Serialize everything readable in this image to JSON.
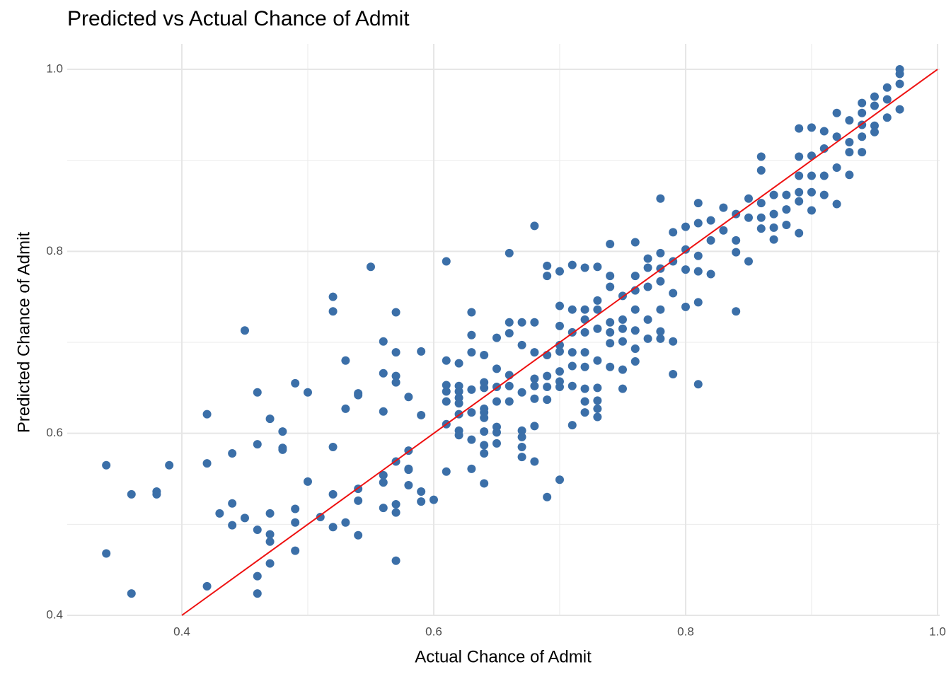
{
  "chart_data": {
    "type": "scatter",
    "title": "Predicted vs Actual Chance of Admit",
    "x_label": "Actual Chance of Admit",
    "y_label": "Predicted Chance of Admit",
    "color": "#3b6fa8",
    "x": [
      0.34,
      0.34,
      0.36,
      0.36,
      0.38,
      0.38,
      0.39,
      0.42,
      0.42,
      0.42,
      0.43,
      0.44,
      0.44,
      0.44,
      0.45,
      0.45,
      0.46,
      0.46,
      0.46,
      0.46,
      0.46,
      0.47,
      0.47,
      0.47,
      0.47,
      0.47,
      0.48,
      0.48,
      0.48,
      0.49,
      0.49,
      0.49,
      0.49,
      0.5,
      0.5,
      0.51,
      0.52,
      0.52,
      0.52,
      0.52,
      0.52,
      0.53,
      0.53,
      0.53,
      0.54,
      0.54,
      0.54,
      0.54,
      0.54,
      0.55,
      0.56,
      0.56,
      0.56,
      0.56,
      0.56,
      0.56,
      0.57,
      0.57,
      0.57,
      0.57,
      0.57,
      0.57,
      0.57,
      0.57,
      0.58,
      0.58,
      0.58,
      0.58,
      0.58,
      0.59,
      0.59,
      0.59,
      0.59,
      0.6,
      0.61,
      0.61,
      0.61,
      0.61,
      0.61,
      0.61,
      0.61,
      0.62,
      0.62,
      0.62,
      0.62,
      0.62,
      0.62,
      0.62,
      0.62,
      0.63,
      0.63,
      0.63,
      0.63,
      0.63,
      0.63,
      0.63,
      0.64,
      0.64,
      0.64,
      0.64,
      0.64,
      0.64,
      0.64,
      0.64,
      0.64,
      0.64,
      0.65,
      0.65,
      0.65,
      0.65,
      0.65,
      0.65,
      0.65,
      0.66,
      0.66,
      0.66,
      0.66,
      0.66,
      0.66,
      0.67,
      0.67,
      0.67,
      0.67,
      0.67,
      0.67,
      0.67,
      0.68,
      0.68,
      0.68,
      0.68,
      0.68,
      0.68,
      0.68,
      0.68,
      0.69,
      0.69,
      0.69,
      0.69,
      0.69,
      0.69,
      0.69,
      0.7,
      0.7,
      0.7,
      0.7,
      0.7,
      0.7,
      0.7,
      0.7,
      0.7,
      0.71,
      0.71,
      0.71,
      0.71,
      0.71,
      0.71,
      0.71,
      0.72,
      0.72,
      0.72,
      0.72,
      0.72,
      0.72,
      0.72,
      0.72,
      0.72,
      0.73,
      0.73,
      0.73,
      0.73,
      0.73,
      0.73,
      0.73,
      0.73,
      0.73,
      0.74,
      0.74,
      0.74,
      0.74,
      0.74,
      0.74,
      0.74,
      0.75,
      0.75,
      0.75,
      0.75,
      0.75,
      0.75,
      0.76,
      0.76,
      0.76,
      0.76,
      0.76,
      0.76,
      0.76,
      0.77,
      0.77,
      0.77,
      0.77,
      0.77,
      0.78,
      0.78,
      0.78,
      0.78,
      0.78,
      0.78,
      0.78,
      0.79,
      0.79,
      0.79,
      0.79,
      0.79,
      0.8,
      0.8,
      0.8,
      0.8,
      0.81,
      0.81,
      0.81,
      0.81,
      0.81,
      0.81,
      0.82,
      0.82,
      0.82,
      0.83,
      0.83,
      0.84,
      0.84,
      0.84,
      0.84,
      0.85,
      0.85,
      0.85,
      0.86,
      0.86,
      0.86,
      0.86,
      0.86,
      0.87,
      0.87,
      0.87,
      0.87,
      0.88,
      0.88,
      0.88,
      0.89,
      0.89,
      0.89,
      0.89,
      0.89,
      0.89,
      0.9,
      0.9,
      0.9,
      0.9,
      0.9,
      0.91,
      0.91,
      0.91,
      0.91,
      0.92,
      0.92,
      0.92,
      0.92,
      0.93,
      0.93,
      0.93,
      0.93,
      0.94,
      0.94,
      0.94,
      0.94,
      0.94,
      0.95,
      0.95,
      0.95,
      0.95,
      0.96,
      0.96,
      0.96,
      0.97,
      0.97,
      0.97,
      0.97
    ],
    "y": [
      0.565,
      0.468,
      0.533,
      0.424,
      0.536,
      0.533,
      0.565,
      0.621,
      0.567,
      0.432,
      0.512,
      0.578,
      0.523,
      0.499,
      0.713,
      0.507,
      0.645,
      0.588,
      0.494,
      0.443,
      0.424,
      0.616,
      0.512,
      0.489,
      0.481,
      0.457,
      0.602,
      0.584,
      0.582,
      0.655,
      0.517,
      0.502,
      0.471,
      0.645,
      0.547,
      0.508,
      0.75,
      0.734,
      0.585,
      0.533,
      0.497,
      0.68,
      0.627,
      0.502,
      0.644,
      0.642,
      0.539,
      0.526,
      0.488,
      0.783,
      0.701,
      0.666,
      0.624,
      0.554,
      0.546,
      0.518,
      0.733,
      0.689,
      0.663,
      0.656,
      0.569,
      0.522,
      0.513,
      0.46,
      0.64,
      0.581,
      0.561,
      0.56,
      0.543,
      0.69,
      0.62,
      0.536,
      0.525,
      0.527,
      0.789,
      0.68,
      0.653,
      0.646,
      0.635,
      0.61,
      0.558,
      0.677,
      0.652,
      0.646,
      0.639,
      0.633,
      0.621,
      0.603,
      0.598,
      0.733,
      0.708,
      0.689,
      0.648,
      0.623,
      0.593,
      0.561,
      0.686,
      0.656,
      0.65,
      0.627,
      0.623,
      0.617,
      0.602,
      0.587,
      0.578,
      0.545,
      0.705,
      0.671,
      0.651,
      0.635,
      0.607,
      0.601,
      0.589,
      0.798,
      0.722,
      0.71,
      0.664,
      0.652,
      0.635,
      0.722,
      0.697,
      0.645,
      0.603,
      0.596,
      0.585,
      0.574,
      0.828,
      0.722,
      0.689,
      0.66,
      0.652,
      0.638,
      0.608,
      0.569,
      0.784,
      0.773,
      0.686,
      0.663,
      0.651,
      0.637,
      0.53,
      0.778,
      0.74,
      0.718,
      0.697,
      0.69,
      0.668,
      0.657,
      0.651,
      0.549,
      0.785,
      0.736,
      0.711,
      0.689,
      0.674,
      0.652,
      0.609,
      0.782,
      0.736,
      0.725,
      0.711,
      0.689,
      0.673,
      0.649,
      0.635,
      0.623,
      0.783,
      0.746,
      0.736,
      0.715,
      0.68,
      0.65,
      0.636,
      0.627,
      0.618,
      0.808,
      0.773,
      0.761,
      0.722,
      0.711,
      0.699,
      0.673,
      0.751,
      0.725,
      0.715,
      0.701,
      0.67,
      0.649,
      0.81,
      0.773,
      0.757,
      0.736,
      0.713,
      0.693,
      0.679,
      0.792,
      0.782,
      0.761,
      0.725,
      0.704,
      0.858,
      0.798,
      0.781,
      0.767,
      0.736,
      0.712,
      0.704,
      0.821,
      0.789,
      0.754,
      0.701,
      0.665,
      0.827,
      0.802,
      0.78,
      0.739,
      0.853,
      0.831,
      0.795,
      0.778,
      0.744,
      0.654,
      0.834,
      0.812,
      0.775,
      0.848,
      0.823,
      0.841,
      0.812,
      0.799,
      0.734,
      0.858,
      0.837,
      0.789,
      0.904,
      0.889,
      0.853,
      0.837,
      0.825,
      0.862,
      0.841,
      0.826,
      0.813,
      0.862,
      0.846,
      0.829,
      0.935,
      0.904,
      0.883,
      0.865,
      0.855,
      0.82,
      0.936,
      0.905,
      0.883,
      0.865,
      0.845,
      0.932,
      0.913,
      0.883,
      0.862,
      0.952,
      0.926,
      0.892,
      0.852,
      0.944,
      0.92,
      0.909,
      0.884,
      0.963,
      0.952,
      0.939,
      0.926,
      0.909,
      0.97,
      0.96,
      0.938,
      0.931,
      0.98,
      0.967,
      0.947,
      1.0,
      0.995,
      0.984,
      0.956
    ],
    "xlim": [
      0.309,
      1.0017
    ],
    "ylim": [
      0.4,
      1.028
    ],
    "xticks": [
      0.4,
      0.6,
      0.8,
      {
        "value": 1.0,
        "label": "1.0"
      }
    ],
    "yticks": [
      0.4,
      0.6,
      0.8,
      {
        "value": 1.0,
        "label": "1.0"
      }
    ],
    "x_minor_grid": [
      0.5,
      0.7,
      0.9
    ],
    "y_minor_grid": [
      0.5,
      0.7,
      0.9
    ],
    "grid": true,
    "reference_line": {
      "color": "#ee1111",
      "x": [
        0.4,
        1.0
      ],
      "y": [
        0.4,
        1.0
      ]
    }
  }
}
